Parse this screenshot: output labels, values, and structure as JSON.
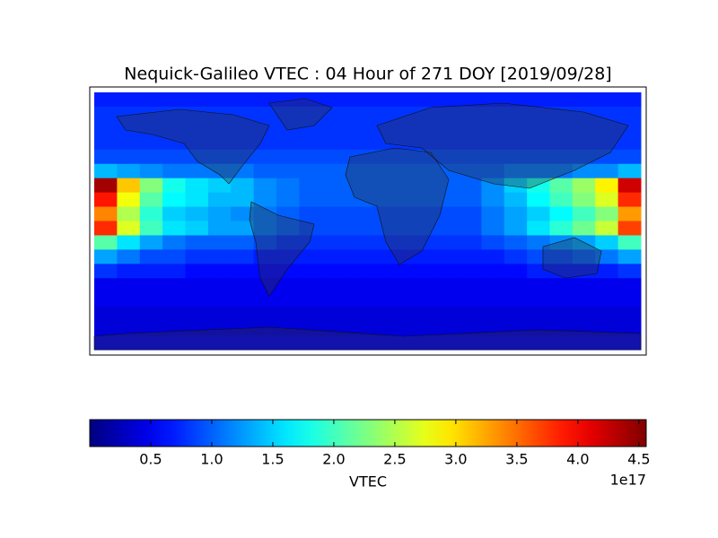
{
  "chart_data": {
    "type": "heatmap",
    "title": "Nequick-Galileo VTEC : 04 Hour of 271 DOY [2019/09/28]",
    "colormap": "jet",
    "clim": [
      0,
      4.56
    ],
    "colorbar_label": "VTEC",
    "colorbar_offset_label": "1e17",
    "colorbar_ticks": [
      0.5,
      {
        "value": 1,
        "label": "1.0"
      },
      1.5,
      {
        "value": 2,
        "label": "2.0"
      },
      2.5,
      {
        "value": 3,
        "label": "3.0"
      },
      3.5,
      {
        "value": 4,
        "label": "4.0"
      },
      4.5
    ],
    "z": [
      [
        0.7,
        0.7,
        0.7,
        0.7,
        0.7,
        0.7,
        0.7,
        0.7,
        0.7,
        0.7,
        0.7,
        0.7,
        0.7,
        0.7,
        0.7,
        0.7,
        0.7,
        0.7,
        0.7,
        0.7,
        0.7,
        0.7,
        0.7,
        0.7
      ],
      [
        0.8,
        0.8,
        0.8,
        0.8,
        0.8,
        0.8,
        0.8,
        0.8,
        0.8,
        0.8,
        0.8,
        0.8,
        0.8,
        0.8,
        0.8,
        0.8,
        0.8,
        0.8,
        0.8,
        0.8,
        0.8,
        0.8,
        0.8,
        0.8
      ],
      [
        0.8,
        0.8,
        0.8,
        0.8,
        0.8,
        0.8,
        0.8,
        0.8,
        0.8,
        0.8,
        0.8,
        0.8,
        0.8,
        0.8,
        0.8,
        0.8,
        0.8,
        0.8,
        0.8,
        0.8,
        0.8,
        0.8,
        0.8,
        0.8
      ],
      [
        0.8,
        0.8,
        0.8,
        0.8,
        0.8,
        0.8,
        0.8,
        0.8,
        0.8,
        0.8,
        0.8,
        0.8,
        0.8,
        0.8,
        0.8,
        0.8,
        0.8,
        0.8,
        0.8,
        0.8,
        0.8,
        0.8,
        0.8,
        0.8
      ],
      [
        0.9,
        0.9,
        0.9,
        0.9,
        0.9,
        0.9,
        0.9,
        0.9,
        0.9,
        0.9,
        0.9,
        0.9,
        0.9,
        0.9,
        0.9,
        0.9,
        0.9,
        0.9,
        0.9,
        0.9,
        0.9,
        0.9,
        0.9,
        0.9
      ],
      [
        1.4,
        1.3,
        1.2,
        1.1,
        1.1,
        1.1,
        1.1,
        1.0,
        1.0,
        1.0,
        1.0,
        1.0,
        1.0,
        1.0,
        1.0,
        1.0,
        1.0,
        1.0,
        1.1,
        1.1,
        1.1,
        1.2,
        1.2,
        1.4
      ],
      [
        4.4,
        3.1,
        2.3,
        1.8,
        1.6,
        1.5,
        1.4,
        1.2,
        1.1,
        1.0,
        1.0,
        1.0,
        1.0,
        1.0,
        1.0,
        1.0,
        1.0,
        1.2,
        1.5,
        1.8,
        2.1,
        2.4,
        2.9,
        4.2
      ],
      [
        3.9,
        2.8,
        2.1,
        1.7,
        1.6,
        1.4,
        1.4,
        1.2,
        1.1,
        1.0,
        1.0,
        1.0,
        1.0,
        1.0,
        1.0,
        1.0,
        1.0,
        1.2,
        1.4,
        1.7,
        2.0,
        2.3,
        2.7,
        3.8
      ],
      [
        3.4,
        2.5,
        1.9,
        1.5,
        1.4,
        1.3,
        1.2,
        1.1,
        1.0,
        0.9,
        0.9,
        0.9,
        0.9,
        0.9,
        0.9,
        0.9,
        0.9,
        1.1,
        1.3,
        1.5,
        1.7,
        2.0,
        2.3,
        3.3
      ],
      [
        3.8,
        2.7,
        2.0,
        1.6,
        1.5,
        1.3,
        1.3,
        1.1,
        1.0,
        0.9,
        0.9,
        0.9,
        0.9,
        0.9,
        0.9,
        0.9,
        0.9,
        1.1,
        1.3,
        1.6,
        1.9,
        2.2,
        2.6,
        3.7
      ],
      [
        2.1,
        1.6,
        1.3,
        1.1,
        1.0,
        1.0,
        1.0,
        0.9,
        0.8,
        0.8,
        0.8,
        0.8,
        0.8,
        0.8,
        0.8,
        0.8,
        0.8,
        0.9,
        1.0,
        1.1,
        1.2,
        1.3,
        1.5,
        2.0
      ],
      [
        1.3,
        1.1,
        0.9,
        0.9,
        0.8,
        0.8,
        0.8,
        0.7,
        0.7,
        0.7,
        0.7,
        0.7,
        0.7,
        0.7,
        0.7,
        0.7,
        0.7,
        0.7,
        0.8,
        0.9,
        0.9,
        1.0,
        1.1,
        1.3
      ],
      [
        0.8,
        0.7,
        0.7,
        0.7,
        0.6,
        0.6,
        0.6,
        0.6,
        0.6,
        0.6,
        0.6,
        0.6,
        0.6,
        0.6,
        0.6,
        0.6,
        0.6,
        0.6,
        0.6,
        0.7,
        0.7,
        0.7,
        0.7,
        0.8
      ],
      [
        0.5,
        0.5,
        0.5,
        0.5,
        0.5,
        0.5,
        0.5,
        0.5,
        0.5,
        0.5,
        0.5,
        0.5,
        0.5,
        0.5,
        0.5,
        0.5,
        0.5,
        0.5,
        0.5,
        0.5,
        0.5,
        0.5,
        0.5,
        0.5
      ],
      [
        0.5,
        0.5,
        0.5,
        0.5,
        0.5,
        0.5,
        0.5,
        0.5,
        0.5,
        0.5,
        0.5,
        0.5,
        0.5,
        0.5,
        0.5,
        0.5,
        0.5,
        0.5,
        0.5,
        0.5,
        0.5,
        0.5,
        0.5,
        0.5
      ],
      [
        0.4,
        0.4,
        0.4,
        0.4,
        0.4,
        0.4,
        0.4,
        0.4,
        0.4,
        0.4,
        0.4,
        0.4,
        0.4,
        0.4,
        0.4,
        0.4,
        0.4,
        0.4,
        0.4,
        0.4,
        0.4,
        0.4,
        0.4,
        0.4
      ],
      [
        0.4,
        0.4,
        0.4,
        0.4,
        0.4,
        0.4,
        0.4,
        0.4,
        0.4,
        0.4,
        0.4,
        0.4,
        0.4,
        0.4,
        0.4,
        0.4,
        0.4,
        0.4,
        0.4,
        0.4,
        0.4,
        0.4,
        0.4,
        0.4
      ],
      [
        0.5,
        0.5,
        0.5,
        0.5,
        0.5,
        0.5,
        0.5,
        0.5,
        0.5,
        0.5,
        0.5,
        0.5,
        0.5,
        0.5,
        0.5,
        0.5,
        0.5,
        0.5,
        0.5,
        0.5,
        0.5,
        0.5,
        0.5,
        0.5
      ]
    ]
  }
}
